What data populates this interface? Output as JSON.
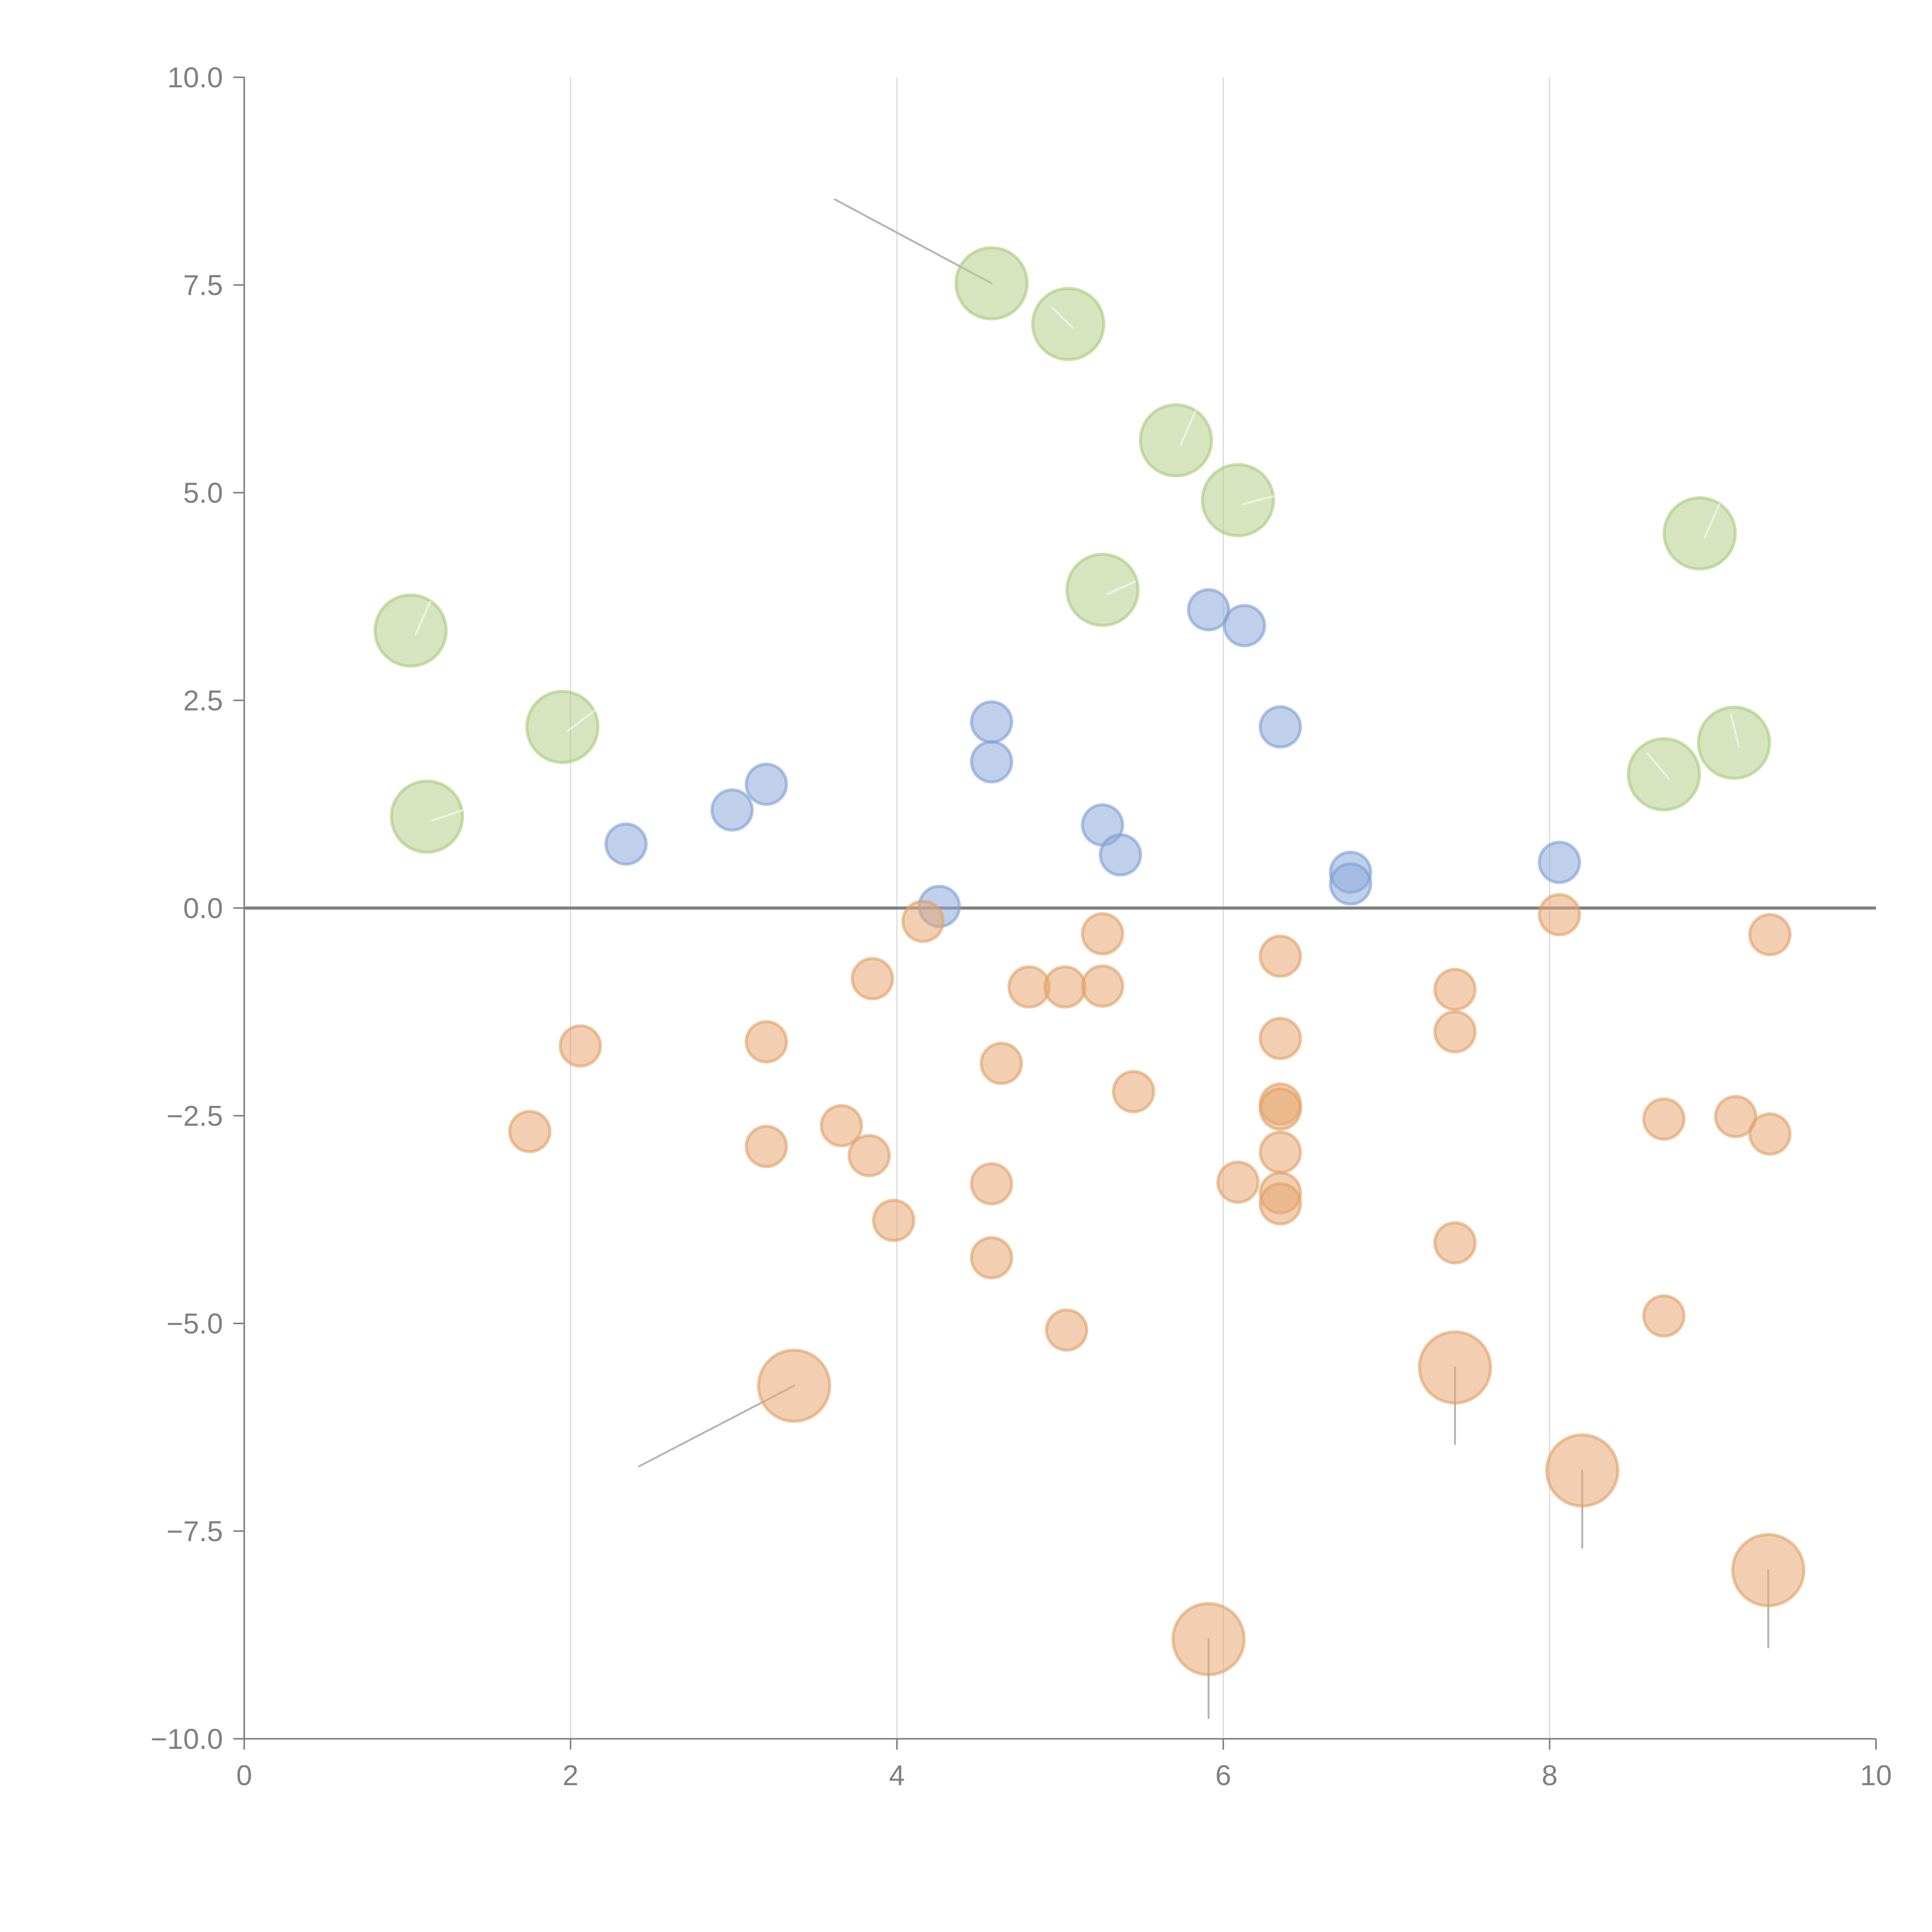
{
  "chart_data": {
    "type": "scatter",
    "title": "",
    "xlabel": "",
    "ylabel": "",
    "xlim": [
      0,
      10
    ],
    "ylim": [
      -10,
      10
    ],
    "x_ticks": [
      "0",
      "2",
      "4",
      "6",
      "8",
      "10"
    ],
    "y_ticks": [
      "10.0",
      "7.5",
      "5.0",
      "2.5",
      "0.0",
      "−2.5",
      "−5.0",
      "−7.5",
      "−10.0"
    ],
    "x_tick_values": [
      0,
      2,
      4,
      6,
      8,
      10
    ],
    "y_tick_values": [
      10,
      7.5,
      5,
      2.5,
      0,
      -2.5,
      -5,
      -7.5,
      -10
    ],
    "grid": "vertical",
    "reference_line_y": 0,
    "legend": "none",
    "series": [
      {
        "name": "green",
        "color": "#b5d08a",
        "stroke": "#a9c97b",
        "size": "large",
        "points": [
          [
            1.02,
            3.34
          ],
          [
            1.95,
            2.18
          ],
          [
            1.12,
            1.1
          ],
          [
            4.58,
            7.52
          ],
          [
            5.05,
            7.03
          ],
          [
            5.71,
            5.63
          ],
          [
            6.09,
            4.91
          ],
          [
            5.26,
            3.83
          ],
          [
            8.92,
            4.51
          ],
          [
            8.7,
            1.61
          ],
          [
            9.13,
            1.99
          ]
        ]
      },
      {
        "name": "blue",
        "color": "#8eaad8",
        "stroke": "#7b9fd3",
        "size": "small",
        "points": [
          [
            2.34,
            0.77
          ],
          [
            2.99,
            1.18
          ],
          [
            3.2,
            1.49
          ],
          [
            4.26,
            0.02
          ],
          [
            4.58,
            2.24
          ],
          [
            4.58,
            1.76
          ],
          [
            5.26,
            1.0
          ],
          [
            5.37,
            0.64
          ],
          [
            5.91,
            3.59
          ],
          [
            6.13,
            3.4
          ],
          [
            6.35,
            2.18
          ],
          [
            6.78,
            0.43
          ],
          [
            6.78,
            0.29
          ],
          [
            8.06,
            0.55
          ]
        ]
      },
      {
        "name": "orange",
        "color": "#e8a873",
        "stroke": "#e0a066",
        "size": "small",
        "points": [
          [
            1.75,
            -2.69
          ],
          [
            2.06,
            -1.66
          ],
          [
            3.2,
            -1.61
          ],
          [
            3.2,
            -2.87
          ],
          [
            3.66,
            -2.62
          ],
          [
            3.83,
            -2.98
          ],
          [
            3.85,
            -0.85
          ],
          [
            3.98,
            -3.76
          ],
          [
            4.16,
            -0.16
          ],
          [
            4.58,
            -3.32
          ],
          [
            4.58,
            -4.21
          ],
          [
            4.64,
            -1.87
          ],
          [
            4.81,
            -0.95
          ],
          [
            5.03,
            -0.95
          ],
          [
            5.04,
            -5.08
          ],
          [
            5.26,
            -0.31
          ],
          [
            5.26,
            -0.94
          ],
          [
            5.45,
            -2.21
          ],
          [
            6.09,
            -3.3
          ],
          [
            6.35,
            -0.58
          ],
          [
            6.35,
            -1.57
          ],
          [
            6.35,
            -2.36
          ],
          [
            6.35,
            -2.42
          ],
          [
            6.35,
            -2.94
          ],
          [
            6.35,
            -3.43
          ],
          [
            6.35,
            -3.56
          ],
          [
            7.42,
            -0.98
          ],
          [
            7.42,
            -1.49
          ],
          [
            7.42,
            -4.03
          ],
          [
            8.06,
            -0.08
          ],
          [
            8.7,
            -2.54
          ],
          [
            8.7,
            -4.91
          ],
          [
            9.14,
            -2.51
          ],
          [
            9.35,
            -0.32
          ],
          [
            9.35,
            -2.72
          ]
        ]
      },
      {
        "name": "orange-highlight",
        "color": "#e8a873",
        "stroke": "#e0a066",
        "size": "large",
        "points": [
          [
            3.37,
            -5.75
          ],
          [
            7.42,
            -5.53
          ],
          [
            8.2,
            -6.77
          ],
          [
            5.91,
            -8.8
          ],
          [
            9.34,
            -7.97
          ]
        ]
      }
    ],
    "annotations": [
      {
        "target": [
          4.58,
          7.52
        ],
        "label_anchor": [
          3.62,
          8.53
        ],
        "style": "leader"
      },
      {
        "target": [
          3.37,
          -5.75
        ],
        "label_anchor": [
          2.42,
          -6.72
        ],
        "style": "leader"
      },
      {
        "target": [
          7.42,
          -5.53
        ],
        "label_anchor": [
          7.42,
          -6.45
        ],
        "style": "leader"
      },
      {
        "target": [
          8.2,
          -6.77
        ],
        "label_anchor": [
          8.2,
          -7.7
        ],
        "style": "leader"
      },
      {
        "target": [
          5.91,
          -8.8
        ],
        "label_anchor": [
          5.91,
          -9.75
        ],
        "style": "leader"
      },
      {
        "target": [
          9.34,
          -7.97
        ],
        "label_anchor": [
          9.34,
          -8.9
        ],
        "style": "leader"
      }
    ]
  }
}
